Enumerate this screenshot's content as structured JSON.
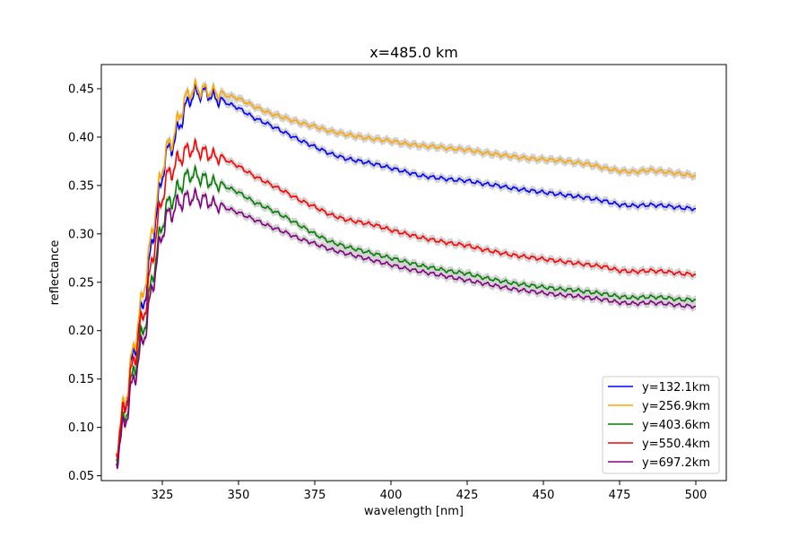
{
  "chart_data": {
    "type": "line",
    "title": "x=485.0 km",
    "xlabel": "wavelength [nm]",
    "ylabel": "reflectance",
    "xlim": [
      305,
      510
    ],
    "ylim": [
      0.045,
      0.475
    ],
    "xticks": [
      325,
      350,
      375,
      400,
      425,
      450,
      475,
      500
    ],
    "yticks": [
      0.05,
      0.1,
      0.15,
      0.2,
      0.25,
      0.3,
      0.35,
      0.4,
      0.45
    ],
    "grid": false,
    "legend_position": "lower-right",
    "uncertainty_band_color": "#d3d3d3",
    "series": [
      {
        "name": "y=132.1km",
        "color": "#0000ff",
        "x": [
          310,
          312,
          314,
          316,
          318,
          320,
          322,
          324,
          326,
          328,
          330,
          332,
          334,
          336,
          338,
          340,
          342,
          345,
          350,
          355,
          360,
          365,
          370,
          375,
          380,
          385,
          390,
          395,
          400,
          405,
          410,
          415,
          420,
          425,
          430,
          435,
          440,
          445,
          450,
          455,
          460,
          465,
          470,
          475,
          480,
          485,
          490,
          495,
          500
        ],
        "values": [
          0.08,
          0.11,
          0.145,
          0.185,
          0.215,
          0.25,
          0.3,
          0.34,
          0.38,
          0.39,
          0.405,
          0.425,
          0.44,
          0.445,
          0.446,
          0.445,
          0.44,
          0.437,
          0.43,
          0.42,
          0.413,
          0.405,
          0.397,
          0.39,
          0.383,
          0.378,
          0.375,
          0.372,
          0.368,
          0.364,
          0.36,
          0.358,
          0.356,
          0.355,
          0.352,
          0.35,
          0.347,
          0.345,
          0.343,
          0.341,
          0.339,
          0.337,
          0.334,
          0.33,
          0.329,
          0.33,
          0.329,
          0.327,
          0.326
        ]
      },
      {
        "name": "y=256.9km",
        "color": "#ffa500",
        "x": [
          310,
          312,
          314,
          316,
          318,
          320,
          322,
          324,
          326,
          328,
          330,
          332,
          334,
          336,
          338,
          340,
          342,
          345,
          350,
          355,
          360,
          365,
          370,
          375,
          380,
          385,
          390,
          395,
          400,
          405,
          410,
          415,
          420,
          425,
          430,
          435,
          440,
          445,
          450,
          455,
          460,
          465,
          470,
          475,
          480,
          485,
          490,
          495,
          500
        ],
        "values": [
          0.082,
          0.115,
          0.15,
          0.19,
          0.225,
          0.265,
          0.31,
          0.35,
          0.385,
          0.395,
          0.415,
          0.435,
          0.447,
          0.45,
          0.449,
          0.448,
          0.446,
          0.444,
          0.44,
          0.432,
          0.425,
          0.42,
          0.415,
          0.411,
          0.406,
          0.403,
          0.4,
          0.398,
          0.396,
          0.393,
          0.391,
          0.39,
          0.388,
          0.387,
          0.384,
          0.382,
          0.38,
          0.378,
          0.377,
          0.376,
          0.374,
          0.372,
          0.368,
          0.365,
          0.364,
          0.366,
          0.364,
          0.362,
          0.36
        ]
      },
      {
        "name": "y=403.6km",
        "color": "#008000",
        "x": [
          310,
          312,
          314,
          316,
          318,
          320,
          322,
          324,
          326,
          328,
          330,
          332,
          334,
          336,
          338,
          340,
          342,
          345,
          350,
          355,
          360,
          365,
          370,
          375,
          380,
          385,
          390,
          395,
          400,
          405,
          410,
          415,
          420,
          425,
          430,
          435,
          440,
          445,
          450,
          455,
          460,
          465,
          470,
          475,
          480,
          485,
          490,
          495,
          500
        ],
        "values": [
          0.075,
          0.1,
          0.13,
          0.165,
          0.19,
          0.22,
          0.26,
          0.295,
          0.325,
          0.335,
          0.345,
          0.355,
          0.362,
          0.36,
          0.358,
          0.355,
          0.352,
          0.35,
          0.343,
          0.333,
          0.326,
          0.318,
          0.309,
          0.3,
          0.292,
          0.287,
          0.283,
          0.279,
          0.275,
          0.271,
          0.267,
          0.264,
          0.261,
          0.259,
          0.255,
          0.252,
          0.249,
          0.247,
          0.245,
          0.243,
          0.242,
          0.24,
          0.238,
          0.235,
          0.234,
          0.235,
          0.234,
          0.232,
          0.232
        ]
      },
      {
        "name": "y=550.4km",
        "color": "#ff0000",
        "x": [
          310,
          312,
          314,
          316,
          318,
          320,
          322,
          324,
          326,
          328,
          330,
          332,
          334,
          336,
          338,
          340,
          342,
          345,
          350,
          355,
          360,
          365,
          370,
          375,
          380,
          385,
          390,
          395,
          400,
          405,
          410,
          415,
          420,
          425,
          430,
          435,
          440,
          445,
          450,
          455,
          460,
          465,
          470,
          475,
          480,
          485,
          490,
          495,
          500
        ],
        "values": [
          0.08,
          0.11,
          0.14,
          0.175,
          0.205,
          0.235,
          0.28,
          0.32,
          0.355,
          0.365,
          0.375,
          0.383,
          0.388,
          0.388,
          0.385,
          0.383,
          0.38,
          0.378,
          0.37,
          0.36,
          0.352,
          0.344,
          0.335,
          0.328,
          0.32,
          0.315,
          0.312,
          0.309,
          0.304,
          0.3,
          0.296,
          0.293,
          0.29,
          0.288,
          0.284,
          0.281,
          0.278,
          0.276,
          0.274,
          0.272,
          0.27,
          0.268,
          0.266,
          0.262,
          0.261,
          0.262,
          0.261,
          0.259,
          0.258
        ]
      },
      {
        "name": "y=697.2km",
        "color": "#800080",
        "x": [
          310,
          312,
          314,
          316,
          318,
          320,
          322,
          324,
          326,
          328,
          330,
          332,
          334,
          336,
          338,
          340,
          342,
          345,
          350,
          355,
          360,
          365,
          370,
          375,
          380,
          385,
          390,
          395,
          400,
          405,
          410,
          415,
          420,
          425,
          430,
          435,
          440,
          445,
          450,
          455,
          460,
          465,
          470,
          475,
          480,
          485,
          490,
          495,
          500
        ],
        "values": [
          0.07,
          0.095,
          0.125,
          0.155,
          0.18,
          0.21,
          0.25,
          0.285,
          0.315,
          0.322,
          0.33,
          0.335,
          0.338,
          0.337,
          0.336,
          0.334,
          0.33,
          0.328,
          0.322,
          0.315,
          0.308,
          0.302,
          0.295,
          0.29,
          0.284,
          0.28,
          0.276,
          0.272,
          0.268,
          0.264,
          0.261,
          0.258,
          0.255,
          0.252,
          0.249,
          0.246,
          0.243,
          0.241,
          0.239,
          0.237,
          0.236,
          0.234,
          0.232,
          0.229,
          0.228,
          0.229,
          0.228,
          0.226,
          0.225
        ]
      }
    ]
  }
}
